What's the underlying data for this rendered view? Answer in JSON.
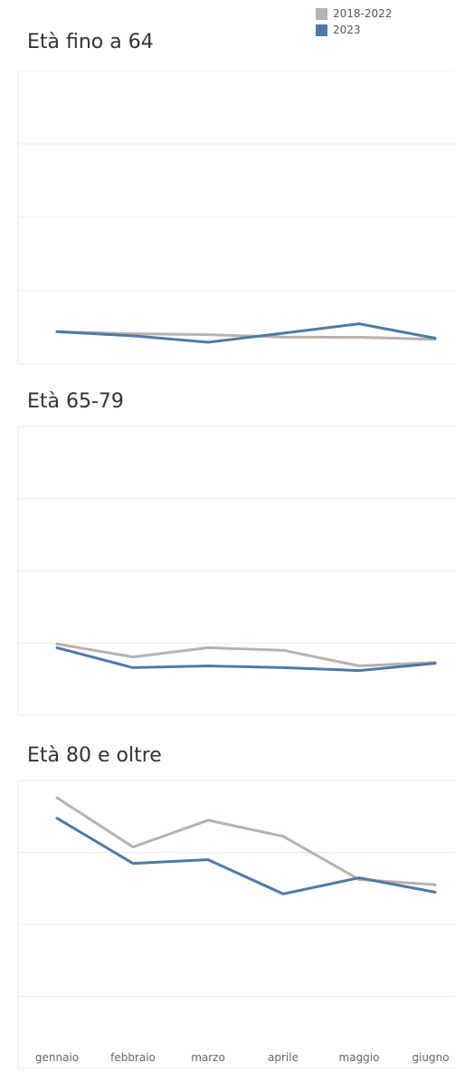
{
  "legend": {
    "items": [
      {
        "label": "2018-2022",
        "color": "#b9b1ac"
      },
      {
        "label": "2023",
        "color": "#4e79a7"
      }
    ]
  },
  "chart_data": [
    {
      "type": "line",
      "title": "Età  fino a 64",
      "categories": [
        "gennaio",
        "febbraio",
        "marzo",
        "aprile",
        "maggio",
        "giugno"
      ],
      "ylim": [
        0,
        100
      ],
      "grid": true,
      "series": [
        {
          "name": "2018-2022",
          "color": "#b9b1ac",
          "values": [
            11.0,
            10.3,
            10.0,
            9.2,
            9.1,
            8.4
          ]
        },
        {
          "name": "2023",
          "color": "#4e79a7",
          "values": [
            11.0,
            9.6,
            7.4,
            10.5,
            13.7,
            8.8
          ]
        }
      ]
    },
    {
      "type": "line",
      "title": "Età 65-79",
      "categories": [
        "gennaio",
        "febbraio",
        "marzo",
        "aprile",
        "maggio",
        "giugno"
      ],
      "ylim": [
        0,
        100
      ],
      "grid": true,
      "series": [
        {
          "name": "2018-2022",
          "color": "#b9b1ac",
          "values": [
            24.7,
            20.2,
            23.4,
            22.5,
            17.1,
            18.3
          ]
        },
        {
          "name": "2023",
          "color": "#4e79a7",
          "values": [
            23.4,
            16.5,
            17.1,
            16.5,
            15.5,
            18.0
          ]
        }
      ]
    },
    {
      "type": "line",
      "title": "Età 80 e oltre",
      "categories": [
        "gennaio",
        "febbraio",
        "marzo",
        "aprile",
        "maggio",
        "giugno"
      ],
      "ylim": [
        0,
        100
      ],
      "grid": true,
      "series": [
        {
          "name": "2018-2022",
          "color": "#b9b1ac",
          "values": [
            94.0,
            76.9,
            86.2,
            80.6,
            65.6,
            63.8
          ]
        },
        {
          "name": "2023",
          "color": "#4e79a7",
          "values": [
            86.9,
            71.2,
            72.5,
            60.6,
            66.2,
            61.2
          ]
        }
      ]
    }
  ]
}
